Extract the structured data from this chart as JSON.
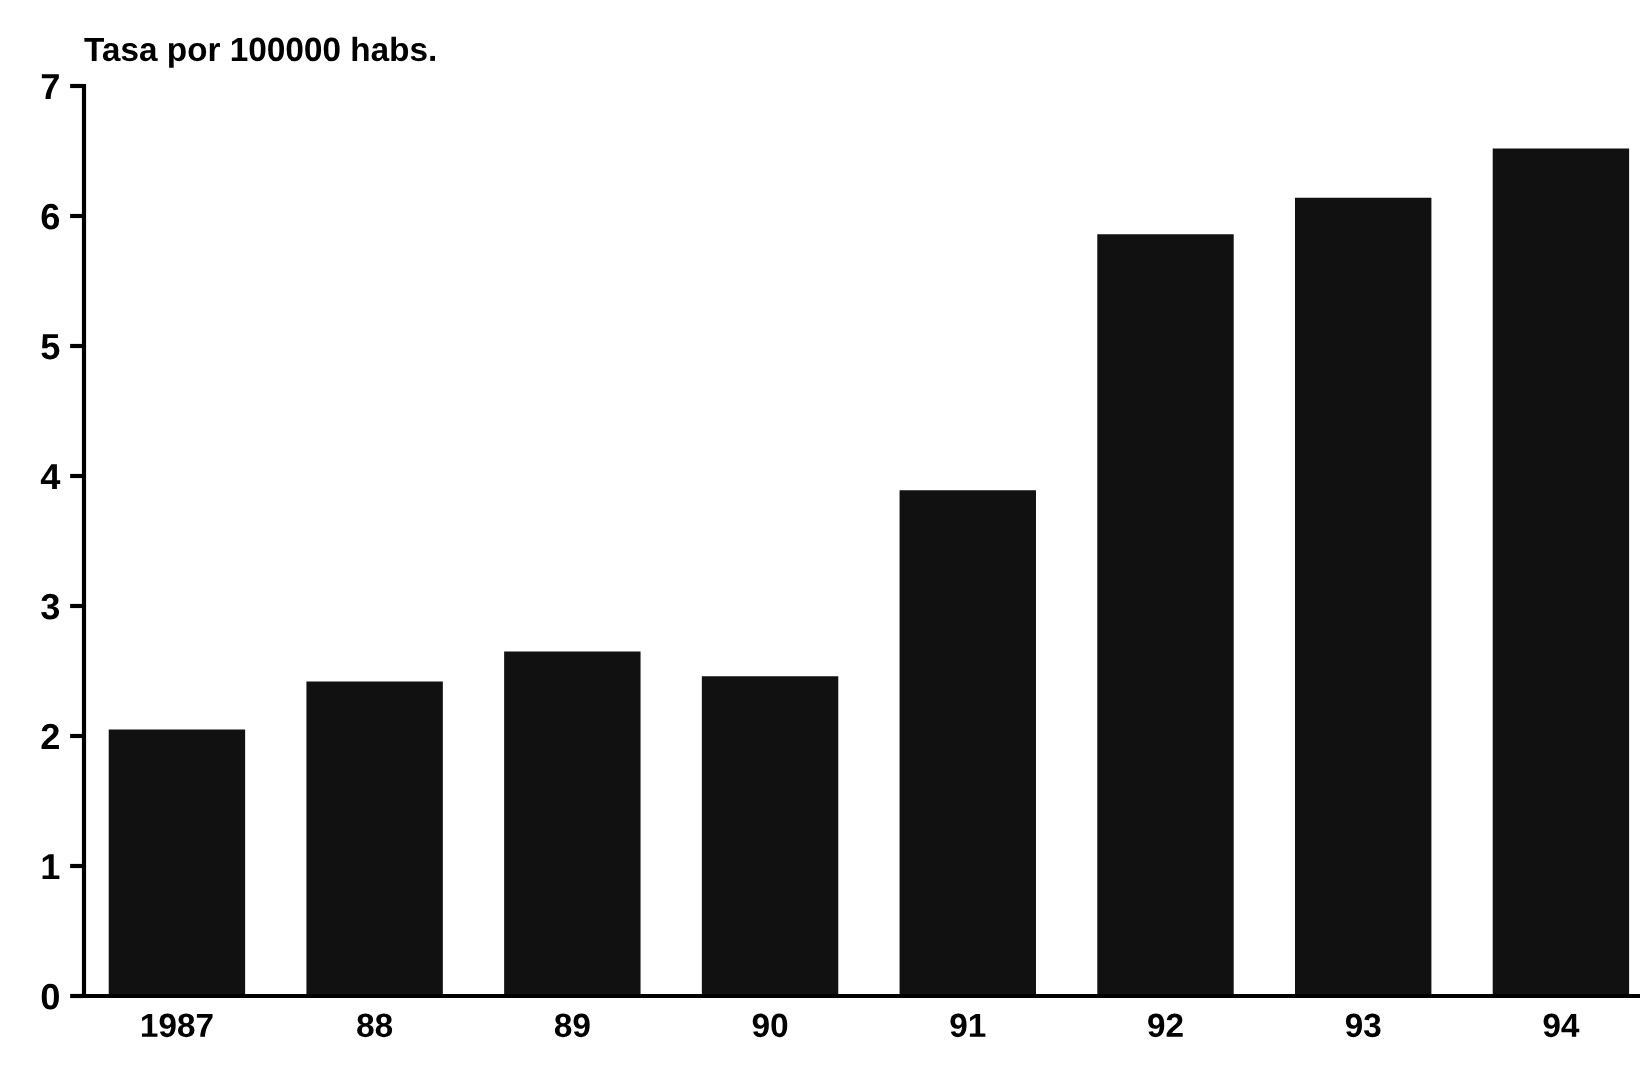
{
  "chart_data": {
    "type": "bar",
    "ylabel": "Tasa por 100000 habs.",
    "categories": [
      "1987",
      "88",
      "89",
      "90",
      "91",
      "92",
      "93",
      "94"
    ],
    "values": [
      2.05,
      2.42,
      2.65,
      2.46,
      3.89,
      5.86,
      6.14,
      6.52
    ],
    "color": "#111111",
    "ylim": [
      0,
      7
    ],
    "yticks": [
      0,
      1,
      2,
      3,
      4,
      5,
      6,
      7
    ],
    "grid": false,
    "legend": false
  }
}
